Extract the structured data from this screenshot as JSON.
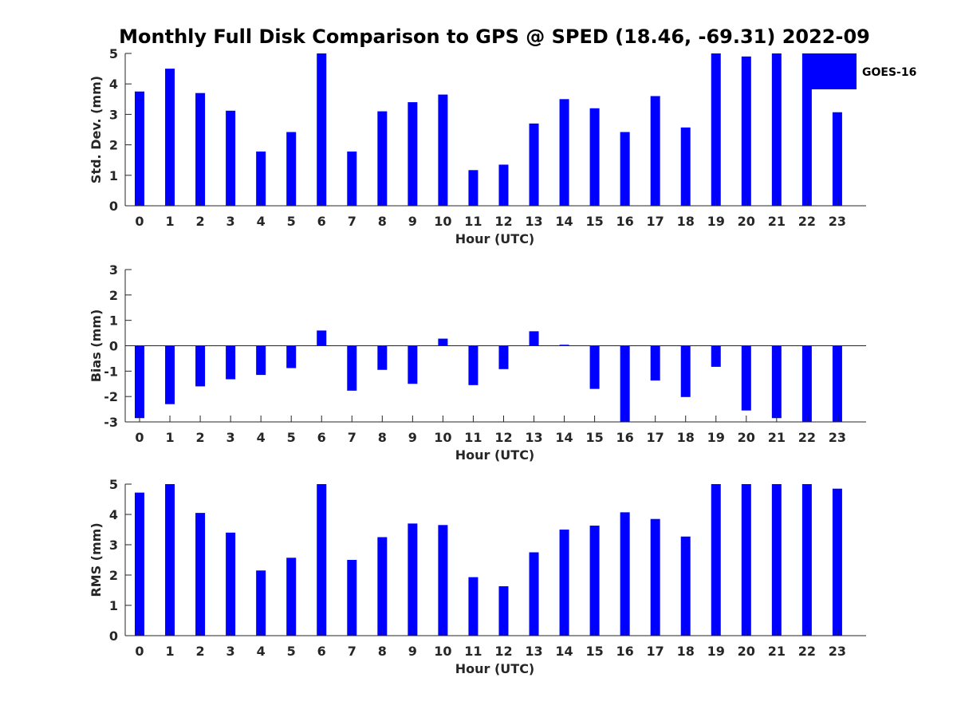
{
  "title": "Monthly Full Disk Comparison to GPS @ SPED (18.46, -69.31) 2022-09",
  "legend": {
    "label": "GOES-16",
    "color": "#0000ff"
  },
  "chart_data": [
    {
      "type": "bar",
      "title": "Monthly Full Disk Comparison to GPS @ SPED (18.46, -69.31) 2022-09",
      "xlabel": "Hour (UTC)",
      "ylabel": "Std. Dev. (mm)",
      "ylim": [
        0,
        5
      ],
      "yticks": [
        0,
        1,
        2,
        3,
        4,
        5
      ],
      "categories": [
        "0",
        "1",
        "2",
        "3",
        "4",
        "5",
        "6",
        "7",
        "8",
        "9",
        "10",
        "11",
        "12",
        "13",
        "14",
        "15",
        "16",
        "17",
        "18",
        "19",
        "20",
        "21",
        "22",
        "23"
      ],
      "series": [
        {
          "name": "GOES-16",
          "color": "#0000ff",
          "values": [
            3.75,
            4.5,
            3.7,
            3.12,
            1.78,
            2.42,
            5.0,
            1.78,
            3.1,
            3.4,
            3.65,
            1.17,
            1.35,
            2.7,
            3.5,
            3.2,
            2.42,
            3.6,
            2.57,
            5.0,
            4.9,
            5.0,
            5.0,
            3.07
          ]
        }
      ]
    },
    {
      "type": "bar",
      "xlabel": "Hour (UTC)",
      "ylabel": "Bias (mm)",
      "ylim": [
        -3,
        3
      ],
      "yticks": [
        -3,
        -2,
        -1,
        0,
        1,
        2,
        3
      ],
      "categories": [
        "0",
        "1",
        "2",
        "3",
        "4",
        "5",
        "6",
        "7",
        "8",
        "9",
        "10",
        "11",
        "12",
        "13",
        "14",
        "15",
        "16",
        "17",
        "18",
        "19",
        "20",
        "21",
        "22",
        "23"
      ],
      "series": [
        {
          "name": "GOES-16",
          "color": "#0000ff",
          "values": [
            -2.85,
            -2.3,
            -1.6,
            -1.32,
            -1.15,
            -0.88,
            0.6,
            -1.77,
            -0.95,
            -1.5,
            0.28,
            -1.55,
            -0.92,
            0.57,
            0.04,
            -1.7,
            -3.0,
            -1.37,
            -2.02,
            -0.83,
            -2.55,
            -2.85,
            -3.0,
            -3.0
          ]
        }
      ]
    },
    {
      "type": "bar",
      "xlabel": "Hour (UTC)",
      "ylabel": "RMS (mm)",
      "ylim": [
        0,
        5
      ],
      "yticks": [
        0,
        1,
        2,
        3,
        4,
        5
      ],
      "categories": [
        "0",
        "1",
        "2",
        "3",
        "4",
        "5",
        "6",
        "7",
        "8",
        "9",
        "10",
        "11",
        "12",
        "13",
        "14",
        "15",
        "16",
        "17",
        "18",
        "19",
        "20",
        "21",
        "22",
        "23"
      ],
      "series": [
        {
          "name": "GOES-16",
          "color": "#0000ff",
          "values": [
            4.72,
            5.0,
            4.05,
            3.4,
            2.15,
            2.57,
            5.0,
            2.5,
            3.25,
            3.7,
            3.65,
            1.93,
            1.63,
            2.75,
            3.5,
            3.63,
            4.07,
            3.85,
            3.27,
            5.0,
            5.0,
            5.0,
            5.0,
            4.85
          ]
        }
      ]
    }
  ]
}
